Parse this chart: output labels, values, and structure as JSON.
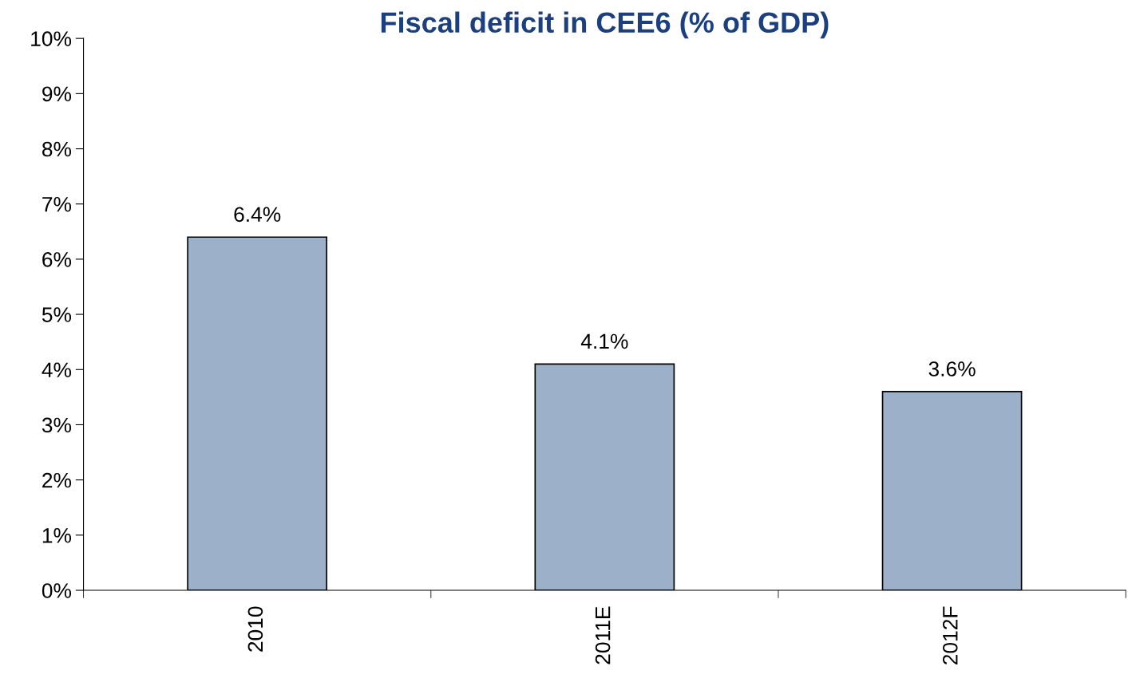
{
  "chart_data": {
    "type": "bar",
    "title": "Fiscal deficit in CEE6 (% of GDP)",
    "categories": [
      "2010",
      "2011E",
      "2012F"
    ],
    "values": [
      6.4,
      4.1,
      3.6
    ],
    "value_labels": [
      "6.4%",
      "4.1%",
      "3.6%"
    ],
    "color": "#9db0c9",
    "ylim": [
      0,
      10
    ],
    "yticks": [
      {
        "value": 0,
        "label": "0%"
      },
      {
        "value": 1,
        "label": "1%"
      },
      {
        "value": 2,
        "label": "2%"
      },
      {
        "value": 3,
        "label": "3%"
      },
      {
        "value": 4,
        "label": "4%"
      },
      {
        "value": 5,
        "label": "5%"
      },
      {
        "value": 6,
        "label": "6%"
      },
      {
        "value": 7,
        "label": "7%"
      },
      {
        "value": 8,
        "label": "8%"
      },
      {
        "value": 9,
        "label": "9%"
      },
      {
        "value": 10,
        "label": "10%"
      }
    ],
    "grid": false
  }
}
